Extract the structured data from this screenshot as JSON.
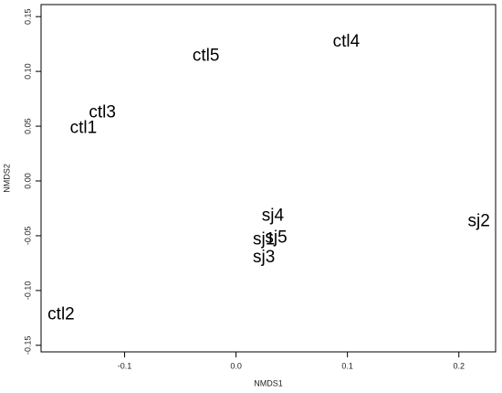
{
  "chart_data": {
    "type": "scatter",
    "x_label": "NMDS1",
    "y_label": "NMDS2",
    "labels": [
      "ctl5",
      "ctl4",
      "ctl3",
      "ctl1",
      "sj4",
      "sj2",
      "sj5",
      "sj1",
      "sj3",
      "ctl2"
    ],
    "x": [
      -0.027,
      0.099,
      -0.12,
      -0.137,
      0.033,
      0.218,
      0.036,
      0.025,
      0.025,
      -0.157
    ],
    "y": [
      0.114,
      0.127,
      0.062,
      0.048,
      -0.032,
      -0.037,
      -0.052,
      -0.054,
      -0.07,
      -0.122
    ],
    "color": "#000000",
    "xlim": [
      -0.175,
      0.233
    ],
    "ylim": [
      -0.156,
      0.161
    ],
    "xticks": [
      -0.1,
      {
        "value": 0,
        "label": "0.0"
      },
      0.1,
      0.2
    ],
    "yticks": [
      -0.15,
      {
        "value": -0.1,
        "label": "-0.10"
      },
      -0.05,
      {
        "value": 0,
        "label": "0.00"
      },
      0.05,
      {
        "value": 0.1,
        "label": "0.10"
      },
      0.15
    ]
  }
}
